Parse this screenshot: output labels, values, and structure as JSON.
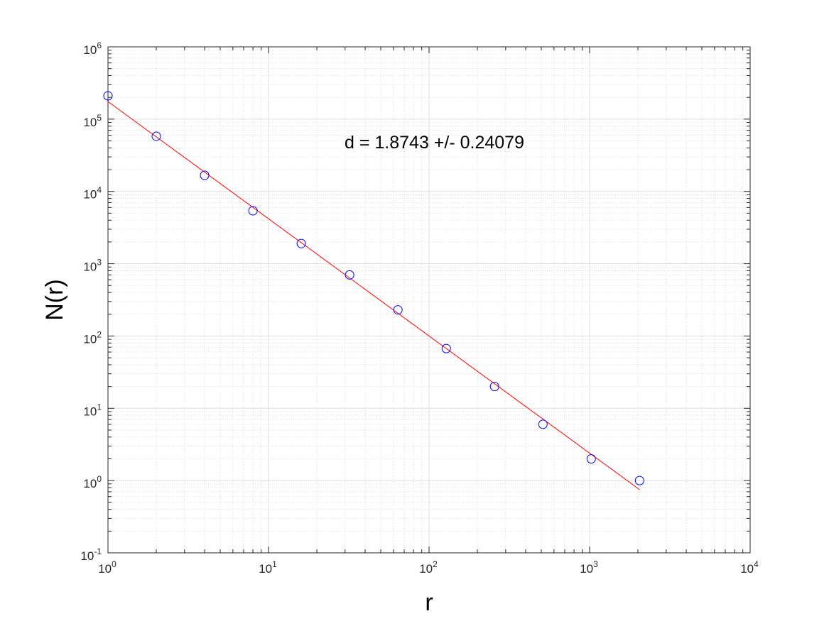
{
  "chart_data": {
    "type": "scatter",
    "xlabel": "r",
    "ylabel": "N(r)",
    "xscale": "log",
    "yscale": "log",
    "xlim": [
      1,
      10000
    ],
    "ylim": [
      0.1,
      1000000
    ],
    "grid": true,
    "minor_grid": true,
    "x_tick_labels": [
      {
        "base": "10",
        "exp": "0"
      },
      {
        "base": "10",
        "exp": "1"
      },
      {
        "base": "10",
        "exp": "2"
      },
      {
        "base": "10",
        "exp": "3"
      },
      {
        "base": "10",
        "exp": "4"
      }
    ],
    "y_tick_labels": [
      {
        "base": "10",
        "exp": "-1"
      },
      {
        "base": "10",
        "exp": "0"
      },
      {
        "base": "10",
        "exp": "1"
      },
      {
        "base": "10",
        "exp": "2"
      },
      {
        "base": "10",
        "exp": "3"
      },
      {
        "base": "10",
        "exp": "4"
      },
      {
        "base": "10",
        "exp": "5"
      },
      {
        "base": "10",
        "exp": "6"
      }
    ],
    "points": {
      "marker": "circle-open",
      "color": "#0000ff",
      "x": [
        1,
        2,
        4,
        8,
        16,
        32,
        64,
        128,
        256,
        512,
        1024,
        2048
      ],
      "y": [
        210000,
        58000,
        16700,
        5400,
        1900,
        700,
        230,
        67,
        20,
        6,
        2,
        1
      ]
    },
    "fit_line": {
      "color": "#ff0000",
      "x": [
        1,
        2048
      ],
      "y": [
        175000,
        0.75
      ]
    },
    "annotation": "d = 1.8743 +/- 0.24079"
  }
}
